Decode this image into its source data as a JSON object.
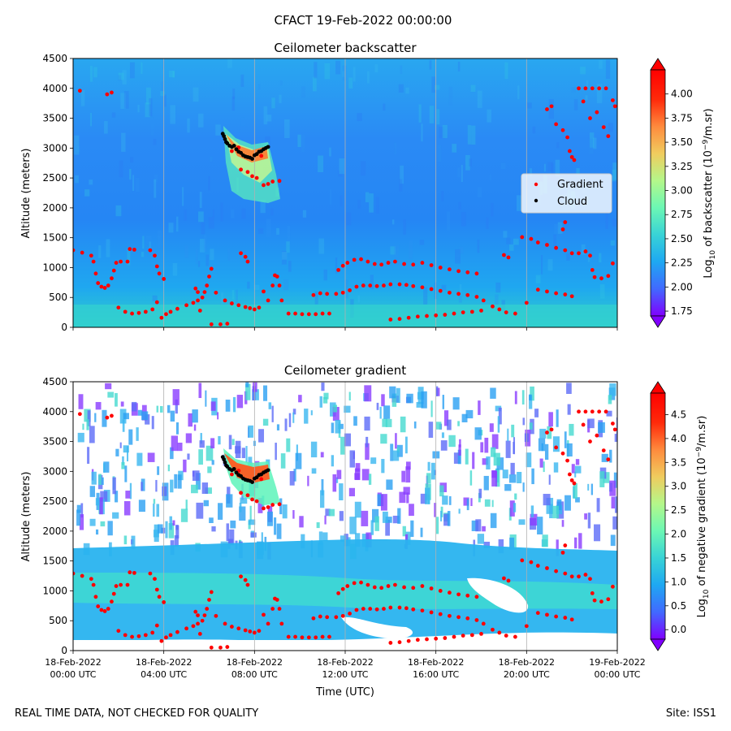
{
  "figure": {
    "title": "CFACT 19-Feb-2022 00:00:00",
    "footer_left": "REAL TIME DATA, NOT CHECKED FOR QUALITY",
    "footer_right": "Site: ISS1"
  },
  "colormap": [
    "#8000ff",
    "#4169ff",
    "#1ea8f2",
    "#38d3d6",
    "#6cf7b4",
    "#b4f78a",
    "#f0cc5e",
    "#ff8a3d",
    "#ff2a0a",
    "#ff0000"
  ],
  "chart_data": [
    {
      "type": "heatmap",
      "title": "Ceilometer backscatter",
      "xlabel": "",
      "ylabel": "Altitude (meters)",
      "xlim": [
        0,
        24
      ],
      "ylim": [
        0,
        4500
      ],
      "yticks": [
        0,
        500,
        1000,
        1500,
        2000,
        2500,
        3000,
        3500,
        4000,
        4500
      ],
      "grid": "vertical",
      "colorbar": {
        "label_prefix": "Log",
        "label_sub": "10",
        "label_mid": " of backscatter (10",
        "label_sup": "−9",
        "label_suffix": "/m.sr)",
        "range": [
          1.7,
          4.25
        ],
        "ticks": [
          "1.75",
          "2.00",
          "2.25",
          "2.50",
          "2.75",
          "3.00",
          "3.25",
          "3.50",
          "3.75",
          "4.00"
        ]
      },
      "legend": {
        "position": "right",
        "entries": [
          {
            "name": "Gradient",
            "color": "#ff0000"
          },
          {
            "name": "Cloud",
            "color": "#000000"
          }
        ]
      },
      "series": [
        {
          "name": "Gradient",
          "color": "#ff0000",
          "points": [
            [
              0.3,
              3960
            ],
            [
              1.5,
              3900
            ],
            [
              1.7,
              3930
            ],
            [
              0,
              1290
            ],
            [
              0.4,
              1250
            ],
            [
              0.8,
              1200
            ],
            [
              0.9,
              1100
            ],
            [
              1.0,
              900
            ],
            [
              1.1,
              740
            ],
            [
              1.25,
              680
            ],
            [
              1.4,
              660
            ],
            [
              1.55,
              700
            ],
            [
              1.7,
              820
            ],
            [
              1.8,
              950
            ],
            [
              1.9,
              1080
            ],
            [
              2.1,
              1100
            ],
            [
              2.4,
              1100
            ],
            [
              2.5,
              1310
            ],
            [
              2.7,
              1300
            ],
            [
              3.4,
              1290
            ],
            [
              3.6,
              1200
            ],
            [
              3.7,
              1020
            ],
            [
              3.8,
              900
            ],
            [
              4.0,
              810
            ],
            [
              2.0,
              330
            ],
            [
              2.3,
              260
            ],
            [
              2.6,
              230
            ],
            [
              2.9,
              240
            ],
            [
              3.2,
              260
            ],
            [
              3.5,
              300
            ],
            [
              3.7,
              420
            ],
            [
              3.9,
              160
            ],
            [
              4.1,
              220
            ],
            [
              4.3,
              260
            ],
            [
              4.6,
              310
            ],
            [
              5.0,
              370
            ],
            [
              5.3,
              410
            ],
            [
              5.5,
              450
            ],
            [
              5.7,
              500
            ],
            [
              5.8,
              590
            ],
            [
              5.9,
              700
            ],
            [
              6.0,
              850
            ],
            [
              6.1,
              980
            ],
            [
              5.4,
              650
            ],
            [
              5.5,
              590
            ],
            [
              5.6,
              280
            ],
            [
              6.1,
              50
            ],
            [
              6.5,
              50
            ],
            [
              6.8,
              60
            ],
            [
              6.3,
              580
            ],
            [
              6.7,
              450
            ],
            [
              7.0,
              400
            ],
            [
              7.3,
              370
            ],
            [
              7.6,
              340
            ],
            [
              7.8,
              320
            ],
            [
              8.0,
              300
            ],
            [
              8.2,
              330
            ],
            [
              7.4,
              1240
            ],
            [
              7.6,
              1180
            ],
            [
              7.7,
              1100
            ],
            [
              8.4,
              600
            ],
            [
              8.6,
              450
            ],
            [
              8.8,
              700
            ],
            [
              8.9,
              870
            ],
            [
              9.0,
              850
            ],
            [
              9.1,
              700
            ],
            [
              9.2,
              450
            ],
            [
              9.5,
              230
            ],
            [
              9.8,
              230
            ],
            [
              10.1,
              220
            ],
            [
              10.4,
              220
            ],
            [
              10.7,
              220
            ],
            [
              11.0,
              230
            ],
            [
              11.3,
              230
            ],
            [
              10.6,
              540
            ],
            [
              10.9,
              570
            ],
            [
              11.2,
              560
            ],
            [
              11.6,
              560
            ],
            [
              11.9,
              580
            ],
            [
              12.2,
              620
            ],
            [
              12.5,
              680
            ],
            [
              12.8,
              700
            ],
            [
              13.1,
              700
            ],
            [
              13.4,
              690
            ],
            [
              13.7,
              700
            ],
            [
              14.0,
              720
            ],
            [
              14.4,
              720
            ],
            [
              14.7,
              710
            ],
            [
              15.0,
              690
            ],
            [
              15.4,
              670
            ],
            [
              15.8,
              640
            ],
            [
              16.2,
              610
            ],
            [
              16.6,
              580
            ],
            [
              17.0,
              560
            ],
            [
              17.4,
              540
            ],
            [
              17.8,
              510
            ],
            [
              18.1,
              450
            ],
            [
              11.7,
              960
            ],
            [
              11.9,
              1030
            ],
            [
              12.1,
              1080
            ],
            [
              12.4,
              1130
            ],
            [
              12.7,
              1140
            ],
            [
              13.0,
              1100
            ],
            [
              13.3,
              1060
            ],
            [
              13.6,
              1050
            ],
            [
              13.9,
              1080
            ],
            [
              14.2,
              1100
            ],
            [
              14.6,
              1060
            ],
            [
              15.0,
              1050
            ],
            [
              15.4,
              1080
            ],
            [
              15.8,
              1040
            ],
            [
              16.2,
              1000
            ],
            [
              16.6,
              970
            ],
            [
              17.0,
              940
            ],
            [
              17.4,
              920
            ],
            [
              17.8,
              900
            ],
            [
              14.0,
              130
            ],
            [
              14.4,
              140
            ],
            [
              14.8,
              160
            ],
            [
              15.2,
              180
            ],
            [
              15.6,
              190
            ],
            [
              16.0,
              200
            ],
            [
              16.4,
              210
            ],
            [
              16.8,
              230
            ],
            [
              17.2,
              250
            ],
            [
              17.6,
              260
            ],
            [
              18.0,
              280
            ],
            [
              18.5,
              350
            ],
            [
              18.8,
              300
            ],
            [
              19.1,
              250
            ],
            [
              19.5,
              230
            ],
            [
              20.0,
              410
            ],
            [
              20.5,
              630
            ],
            [
              20.9,
              600
            ],
            [
              21.3,
              570
            ],
            [
              21.7,
              550
            ],
            [
              22.0,
              520
            ],
            [
              19.0,
              1210
            ],
            [
              19.2,
              1170
            ],
            [
              19.8,
              1510
            ],
            [
              20.2,
              1480
            ],
            [
              20.5,
              1420
            ],
            [
              20.9,
              1380
            ],
            [
              21.3,
              1330
            ],
            [
              21.7,
              1290
            ],
            [
              22.0,
              1240
            ],
            [
              22.3,
              1240
            ],
            [
              22.6,
              1270
            ],
            [
              22.8,
              1200
            ],
            [
              22.9,
              960
            ],
            [
              23.0,
              840
            ],
            [
              23.3,
              820
            ],
            [
              23.6,
              860
            ],
            [
              23.8,
              1070
            ],
            [
              21.6,
              1640
            ],
            [
              21.7,
              1760
            ],
            [
              20.9,
              3650
            ],
            [
              21.1,
              3700
            ],
            [
              21.3,
              3400
            ],
            [
              21.6,
              3300
            ],
            [
              21.8,
              3180
            ],
            [
              21.9,
              2950
            ],
            [
              22.0,
              2850
            ],
            [
              22.1,
              2800
            ],
            [
              22.3,
              4000
            ],
            [
              22.6,
              4000
            ],
            [
              22.9,
              4000
            ],
            [
              23.2,
              4000
            ],
            [
              23.5,
              4000
            ],
            [
              23.8,
              3800
            ],
            [
              23.9,
              3700
            ],
            [
              22.5,
              3780
            ],
            [
              22.8,
              3500
            ],
            [
              23.1,
              3600
            ],
            [
              23.4,
              3350
            ],
            [
              23.6,
              3200
            ],
            [
              7.0,
              2950
            ],
            [
              7.4,
              2640
            ],
            [
              7.7,
              2600
            ],
            [
              7.9,
              2530
            ],
            [
              8.1,
              2500
            ],
            [
              8.4,
              2380
            ],
            [
              8.6,
              2400
            ],
            [
              8.8,
              2440
            ],
            [
              9.1,
              2450
            ],
            [
              7.3,
              3010
            ],
            [
              8.3,
              2870
            ]
          ]
        },
        {
          "name": "Cloud",
          "color": "#000000",
          "points": [
            [
              6.6,
              3240
            ],
            [
              6.65,
              3200
            ],
            [
              6.7,
              3150
            ],
            [
              6.75,
              3100
            ],
            [
              6.8,
              3080
            ],
            [
              6.9,
              3040
            ],
            [
              7.0,
              3020
            ],
            [
              7.1,
              3040
            ],
            [
              7.2,
              2980
            ],
            [
              7.3,
              2940
            ],
            [
              7.4,
              2920
            ],
            [
              7.5,
              2880
            ],
            [
              7.6,
              2860
            ],
            [
              7.7,
              2850
            ],
            [
              7.8,
              2840
            ],
            [
              7.9,
              2820
            ],
            [
              8.0,
              2880
            ],
            [
              8.1,
              2900
            ],
            [
              8.2,
              2940
            ],
            [
              8.3,
              2950
            ],
            [
              8.4,
              2980
            ],
            [
              8.5,
              3000
            ],
            [
              8.6,
              3020
            ]
          ]
        }
      ]
    },
    {
      "type": "heatmap",
      "title": "Ceilometer gradient",
      "xlabel": "Time (UTC)",
      "ylabel": "Altitude (meters)",
      "xlim": [
        0,
        24
      ],
      "ylim": [
        0,
        4500
      ],
      "yticks": [
        0,
        500,
        1000,
        1500,
        2000,
        2500,
        3000,
        3500,
        4000,
        4500
      ],
      "xticks": [
        {
          "value": 0,
          "line1": "18-Feb-2022",
          "line2": "00:00 UTC"
        },
        {
          "value": 4,
          "line1": "18-Feb-2022",
          "line2": "04:00 UTC"
        },
        {
          "value": 8,
          "line1": "18-Feb-2022",
          "line2": "08:00 UTC"
        },
        {
          "value": 12,
          "line1": "18-Feb-2022",
          "line2": "12:00 UTC"
        },
        {
          "value": 16,
          "line1": "18-Feb-2022",
          "line2": "16:00 UTC"
        },
        {
          "value": 20,
          "line1": "18-Feb-2022",
          "line2": "20:00 UTC"
        },
        {
          "value": 24,
          "line1": "19-Feb-2022",
          "line2": "00:00 UTC"
        }
      ],
      "grid": "vertical",
      "colorbar": {
        "label_prefix": "Log",
        "label_sub": "10",
        "label_mid": " of negative gradient (10",
        "label_sup": "−9",
        "label_suffix": "/m.sr)",
        "range": [
          -0.2,
          4.95
        ],
        "ticks": [
          "0.0",
          "0.5",
          "1.0",
          "1.5",
          "2.0",
          "2.5",
          "3.0",
          "3.5",
          "4.0",
          "4.5"
        ]
      },
      "series_ref": "same gradient and cloud points as upper panel"
    }
  ]
}
